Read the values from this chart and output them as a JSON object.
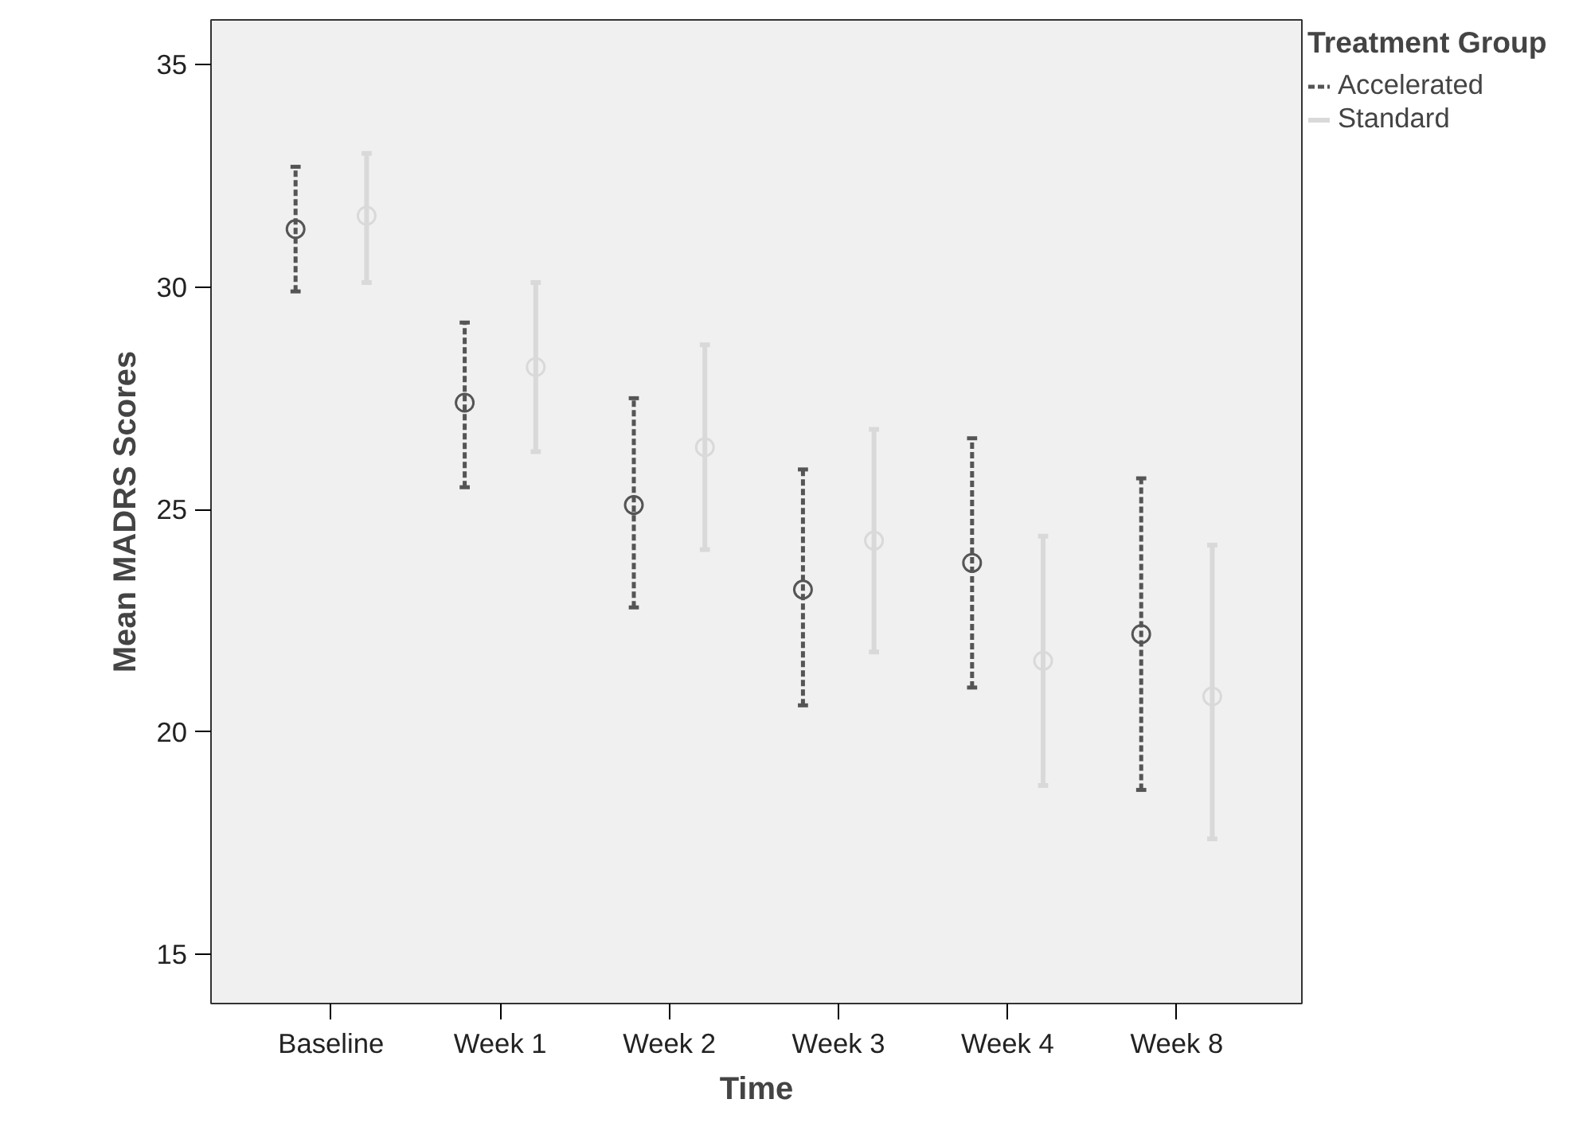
{
  "chart_data": {
    "type": "scatter",
    "xlabel": "Time",
    "ylabel": "Mean MADRS Scores",
    "legend_title": "Treatment Group",
    "categories": [
      "Baseline",
      "Week 1",
      "Week 2",
      "Week 3",
      "Week 4",
      "Week 8"
    ],
    "series": [
      {
        "name": "Accelerated",
        "color": "#555555",
        "line_style": "dashed",
        "values": [
          31.3,
          27.4,
          25.1,
          23.2,
          23.8,
          22.2
        ],
        "errors": [
          [
            29.9,
            32.7
          ],
          [
            25.5,
            29.2
          ],
          [
            22.8,
            27.5
          ],
          [
            20.6,
            25.9
          ],
          [
            21.0,
            26.6
          ],
          [
            18.7,
            25.7
          ]
        ]
      },
      {
        "name": "Standard",
        "color": "#d9d9d9",
        "line_style": "solid",
        "values": [
          31.6,
          28.2,
          26.4,
          24.3,
          21.6,
          20.8
        ],
        "errors": [
          [
            30.1,
            33.0
          ],
          [
            26.3,
            30.1
          ],
          [
            24.1,
            28.7
          ],
          [
            21.8,
            26.8
          ],
          [
            18.8,
            24.4
          ],
          [
            17.6,
            24.2
          ]
        ]
      }
    ],
    "ylim": [
      13.9,
      36.0
    ],
    "yticks": [
      15,
      20,
      25,
      30,
      35
    ],
    "marker": "circle",
    "grid": false,
    "legend": "right"
  }
}
